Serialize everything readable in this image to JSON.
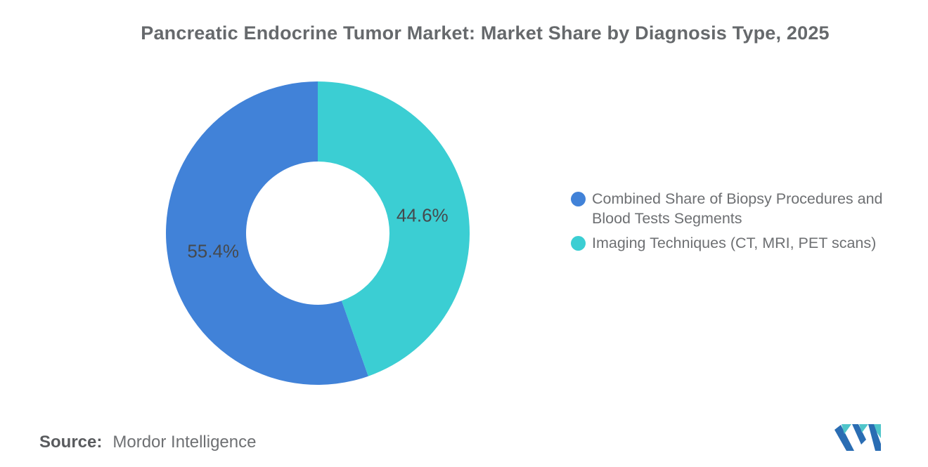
{
  "chart_data": {
    "type": "pie",
    "donut": true,
    "title": "Pancreatic Endocrine Tumor Market: Market Share by Diagnosis Type, 2025",
    "segments": [
      {
        "label": "Combined Share of Biopsy Procedures and Blood Tests Segments",
        "value": 55.4,
        "pct_label": "55.4%",
        "color": "#4182d8"
      },
      {
        "label": "Imaging Techniques (CT, MRI, PET scans)",
        "value": 44.6,
        "pct_label": "44.6%",
        "color": "#3bced3"
      }
    ],
    "start_angle": "top",
    "direction": "counter-clockwise",
    "inner_radius_ratio": 0.47,
    "label_format": "percent",
    "legend_position": "right",
    "grid": false
  },
  "footer": {
    "source_label": "Source:",
    "source_value": "Mordor Intelligence",
    "logo_name": "mordor-intelligence-logo"
  },
  "colors": {
    "title_text": "#66696c",
    "percent_label_text": "#45494d",
    "legend_text": "#6e7073",
    "source_text": "#6e7073",
    "logo_blue": "#2a6db3",
    "logo_teal": "#4fc5ca"
  }
}
